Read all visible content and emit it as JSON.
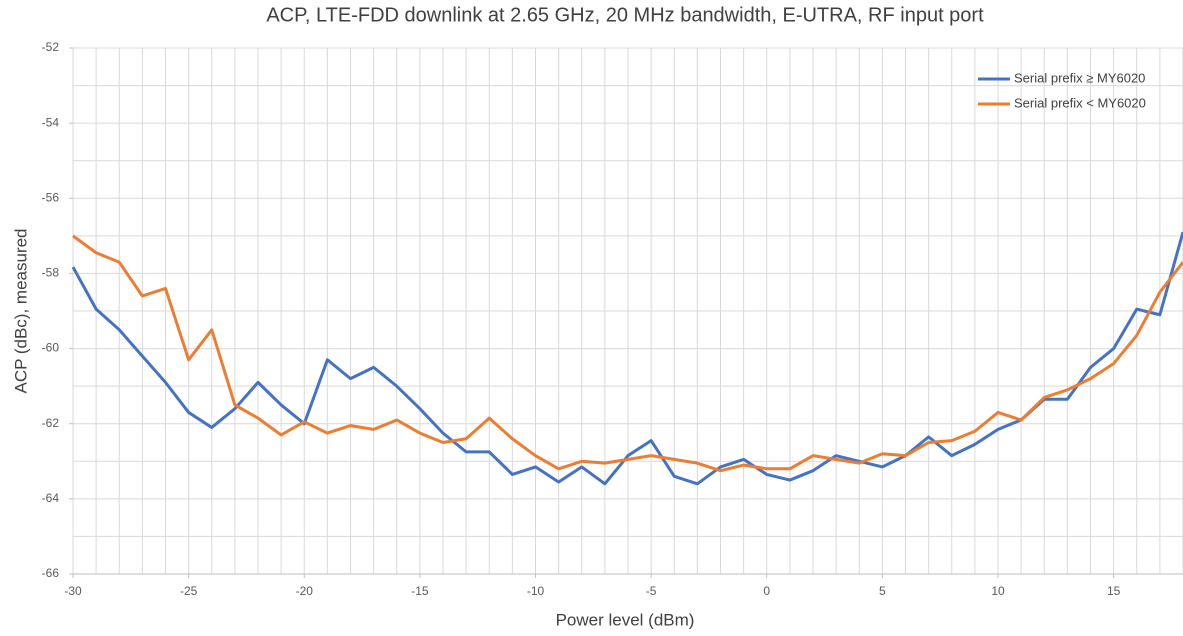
{
  "chart_data": {
    "type": "line",
    "title": "ACP, LTE-FDD downlink at 2.65 GHz, 20 MHz bandwidth, E-UTRA, RF input port",
    "x_label": "Power level (dBm)",
    "y_label": "ACP (dBc), measured",
    "x": [
      -30,
      -29,
      -28,
      -27,
      -26,
      -25,
      -24,
      -23,
      -22,
      -21,
      -20,
      -19,
      -18,
      -17,
      -16,
      -15,
      -14,
      -13,
      -12,
      -11,
      -10,
      -9,
      -8,
      -7,
      -6,
      -5,
      -4,
      -3,
      -2,
      -1,
      0,
      1,
      2,
      3,
      4,
      5,
      6,
      7,
      8,
      9,
      10,
      11,
      12,
      13,
      14,
      15,
      16,
      17,
      18
    ],
    "series": [
      {
        "name": "Serial prefix ≥ MY6020",
        "color": "#4472c4",
        "values": [
          -57.83,
          -58.95,
          -59.5,
          -60.2,
          -60.9,
          -61.7,
          -62.1,
          -61.6,
          -60.9,
          -61.5,
          -62.0,
          -60.3,
          -60.8,
          -60.5,
          -61.0,
          -61.6,
          -62.25,
          -62.75,
          -62.75,
          -63.35,
          -63.15,
          -63.55,
          -63.15,
          -63.6,
          -62.85,
          -62.45,
          -63.4,
          -63.6,
          -63.15,
          -62.95,
          -63.35,
          -63.5,
          -63.25,
          -62.85,
          -63.0,
          -63.15,
          -62.85,
          -62.35,
          -62.85,
          -62.55,
          -62.15,
          -61.9,
          -61.35,
          -61.35,
          -60.5,
          -60.0,
          -58.95,
          -59.1,
          -56.9
        ]
      },
      {
        "name": "Serial prefix < MY6020",
        "color": "#ed7d31",
        "values": [
          -57.0,
          -57.45,
          -57.7,
          -58.6,
          -58.4,
          -60.3,
          -59.5,
          -61.5,
          -61.85,
          -62.3,
          -61.95,
          -62.25,
          -62.05,
          -62.15,
          -61.9,
          -62.25,
          -62.5,
          -62.4,
          -61.85,
          -62.4,
          -62.85,
          -63.2,
          -63.0,
          -63.05,
          -62.95,
          -62.85,
          -62.95,
          -63.05,
          -63.25,
          -63.1,
          -63.2,
          -63.2,
          -62.85,
          -62.95,
          -63.05,
          -62.8,
          -62.85,
          -62.5,
          -62.45,
          -62.2,
          -61.7,
          -61.9,
          -61.3,
          -61.1,
          -60.8,
          -60.4,
          -59.65,
          -58.5,
          -57.7
        ]
      }
    ],
    "xlim": [
      -30,
      18
    ],
    "ylim": [
      -66,
      -52
    ],
    "xticks": [
      -30,
      -25,
      -20,
      -15,
      -10,
      -5,
      0,
      5,
      10,
      15
    ],
    "yticks": [
      -66,
      -64,
      -62,
      -60,
      -58,
      -56,
      -54,
      -52
    ],
    "x_minor_ticks": [
      -30,
      -29,
      -28,
      -27,
      -26,
      -25,
      -24,
      -23,
      -22,
      -21,
      -20,
      -19,
      -18,
      -17,
      -16,
      -15,
      -14,
      -13,
      -12,
      -11,
      -10,
      -9,
      -8,
      -7,
      -6,
      -5,
      -4,
      -3,
      -2,
      -1,
      0,
      1,
      2,
      3,
      4,
      5,
      6,
      7,
      8,
      9,
      10,
      11,
      12,
      13,
      14,
      15,
      16,
      17,
      18
    ],
    "y_minor_ticks": [
      -66,
      -65,
      -64,
      -63,
      -62,
      -61,
      -60,
      -59,
      -58,
      -57,
      -56,
      -55,
      -54,
      -53,
      -52
    ],
    "grid": true,
    "legend": "top-right"
  }
}
